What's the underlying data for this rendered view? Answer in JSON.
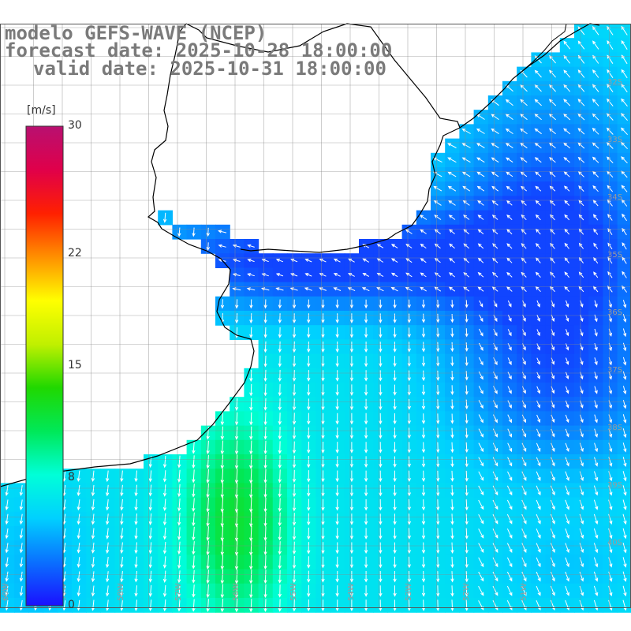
{
  "header": {
    "model_line": "modelo GEFS-WAVE (NCEP)",
    "forecast_line": "forecast date: 2025-10-28 18:00:00",
    "valid_line": "valid date: 2025-10-31 18:00:00"
  },
  "colorbar": {
    "unit": "[m/s]",
    "min": 0,
    "max": 30,
    "ticks": [
      {
        "value": 30,
        "label": "30"
      },
      {
        "value": 22,
        "label": "22"
      },
      {
        "value": 15,
        "label": "15"
      },
      {
        "value": 8,
        "label": "8"
      },
      {
        "value": 0,
        "label": "0"
      }
    ],
    "stops": [
      "#1a10ff",
      "#0a70ff",
      "#00d0ff",
      "#00ffd8",
      "#00e858",
      "#20d800",
      "#c0f000",
      "#ffff00",
      "#ff9000",
      "#ff2000",
      "#e0004a",
      "#b81070"
    ]
  },
  "map": {
    "lat_labels": [
      "32S",
      "33S",
      "34S",
      "35S",
      "36S",
      "37S",
      "38S",
      "39S",
      "40S"
    ],
    "lon_labels": [
      "60W",
      "59W",
      "58W",
      "57W",
      "56W",
      "55W",
      "54W",
      "53W",
      "52W",
      "51W"
    ],
    "lat_range": [
      31,
      41.5
    ],
    "lon_range": [
      61,
      50
    ],
    "colors": {
      "land": "#ffffff",
      "coast": "#000000",
      "grid": "#8a8a8a",
      "arrow": "#ffffff"
    }
  }
}
